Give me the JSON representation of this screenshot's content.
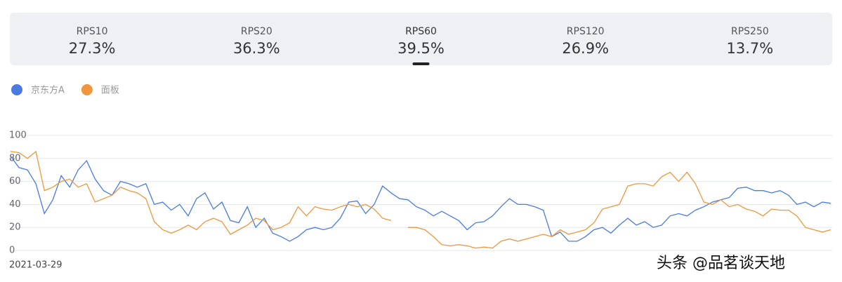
{
  "tabs": [
    {
      "label": "RPS10",
      "value": "27.3%"
    },
    {
      "label": "RPS20",
      "value": "36.3%"
    },
    {
      "label": "RPS60",
      "value": "39.5%"
    },
    {
      "label": "RPS120",
      "value": "26.9%"
    },
    {
      "label": "RPS250",
      "value": "13.7%"
    }
  ],
  "active_tab": 2,
  "watermark": "头条 @品茗谈天地",
  "chart_data": {
    "type": "line",
    "categories": [
      "2021-03-29",
      null,
      null,
      null,
      null,
      null,
      null,
      null,
      null,
      null,
      null,
      null,
      null,
      null,
      null,
      null,
      null,
      null,
      null,
      null,
      null,
      null,
      null,
      null,
      null,
      null,
      null,
      null,
      null,
      null,
      null,
      null,
      null,
      null,
      null,
      null,
      null,
      null,
      null,
      null,
      null,
      null,
      null,
      null,
      null,
      null,
      null,
      null,
      null,
      null,
      null,
      null,
      null,
      null,
      null,
      null,
      null,
      null,
      null,
      null,
      null,
      null,
      null,
      null,
      null,
      null,
      null,
      null,
      null,
      null,
      null,
      null,
      null,
      null,
      null,
      null,
      null,
      null,
      null,
      null,
      null,
      null,
      null,
      null,
      null,
      null,
      null,
      null,
      null,
      null,
      null,
      null,
      null,
      null,
      null,
      null,
      null,
      null
    ],
    "series": [
      {
        "name": "京东方A",
        "color": "#4a7be0",
        "values": [
          82,
          72,
          70,
          58,
          32,
          44,
          65,
          55,
          70,
          78,
          62,
          52,
          48,
          60,
          58,
          55,
          58,
          40,
          42,
          35,
          40,
          30,
          45,
          50,
          36,
          42,
          26,
          24,
          38,
          20,
          28,
          15,
          12,
          8,
          12,
          18,
          20,
          18,
          20,
          28,
          42,
          43,
          32,
          40,
          56,
          50,
          45,
          44,
          38,
          35,
          30,
          34,
          30,
          26,
          18,
          24,
          25,
          30,
          38,
          45,
          40,
          40,
          38,
          35,
          12,
          16,
          8,
          8,
          12,
          18,
          20,
          15,
          22,
          28,
          22,
          25,
          20,
          22,
          30,
          32,
          30,
          35,
          38,
          42,
          44,
          46,
          54,
          55,
          52,
          52,
          50,
          52,
          48,
          40,
          42,
          38,
          42,
          41
        ]
      },
      {
        "name": "面板",
        "color": "#f0963c",
        "values": [
          86,
          85,
          80,
          86,
          52,
          55,
          60,
          62,
          55,
          58,
          42,
          45,
          48,
          55,
          52,
          50,
          45,
          25,
          18,
          15,
          18,
          22,
          18,
          25,
          28,
          25,
          14,
          18,
          22,
          28,
          26,
          18,
          20,
          24,
          38,
          30,
          38,
          36,
          35,
          38,
          40,
          38,
          40,
          36,
          28,
          26,
          null,
          20,
          20,
          18,
          12,
          5,
          4,
          5,
          4,
          2,
          3,
          2,
          8,
          10,
          8,
          10,
          12,
          14,
          12,
          18,
          14,
          16,
          18,
          24,
          36,
          38,
          40,
          56,
          58,
          58,
          56,
          64,
          68,
          60,
          68,
          58,
          42,
          40,
          44,
          38,
          40,
          36,
          34,
          30,
          36,
          35,
          35,
          30,
          20,
          18,
          16,
          18
        ]
      }
    ],
    "ylim": [
      0,
      100
    ],
    "yticks": [
      0,
      20,
      40,
      60,
      80,
      100
    ],
    "grid": true
  }
}
